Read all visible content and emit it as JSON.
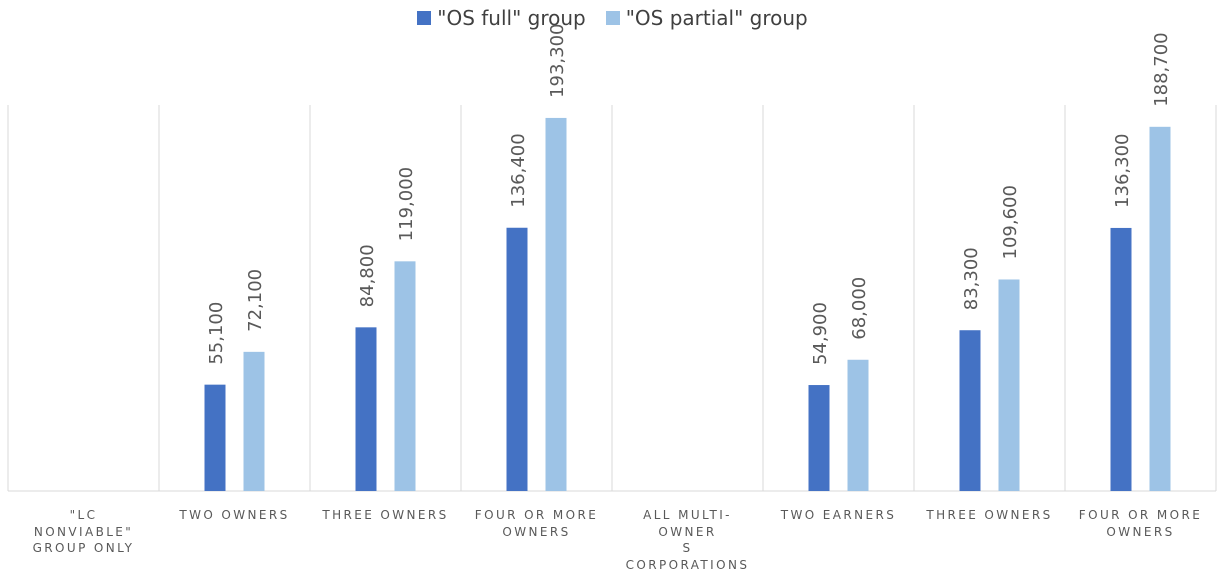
{
  "legend": {
    "items": [
      {
        "label": "\"OS full\" group",
        "color": "#4472C4"
      },
      {
        "label": "\"OS partial\" group",
        "color": "#9DC3E6"
      }
    ]
  },
  "chart_data": {
    "type": "bar",
    "title": "",
    "xlabel": "",
    "ylabel": "",
    "ylim": [
      0,
      200000
    ],
    "grid": false,
    "legend_position": "top",
    "categories": [
      "\"LC NONVIABLE\" GROUP ONLY",
      "TWO OWNERS",
      "THREE OWNERS",
      "FOUR OR MORE OWNERS",
      "ALL MULTI-OWNER S CORPORATIONS",
      "TWO EARNERS",
      "THREE OWNERS",
      "FOUR OR MORE OWNERS"
    ],
    "category_lines": [
      [
        "\"LC",
        "NONVIABLE\"",
        "GROUP ONLY"
      ],
      [
        "TWO OWNERS"
      ],
      [
        "THREE OWNERS"
      ],
      [
        "FOUR OR MORE",
        "OWNERS"
      ],
      [
        "ALL MULTI-",
        "OWNER",
        "S",
        "CORPORATIONS"
      ],
      [
        "TWO EARNERS"
      ],
      [
        "THREE OWNERS"
      ],
      [
        "FOUR OR MORE",
        "OWNERS"
      ]
    ],
    "series": [
      {
        "name": "\"OS full\" group",
        "color": "#4472C4",
        "values": [
          null,
          55100,
          84800,
          136400,
          null,
          54900,
          83300,
          136300
        ]
      },
      {
        "name": "\"OS partial\" group",
        "color": "#9DC3E6",
        "values": [
          null,
          72100,
          119000,
          193300,
          null,
          68000,
          109600,
          188700
        ]
      }
    ]
  }
}
